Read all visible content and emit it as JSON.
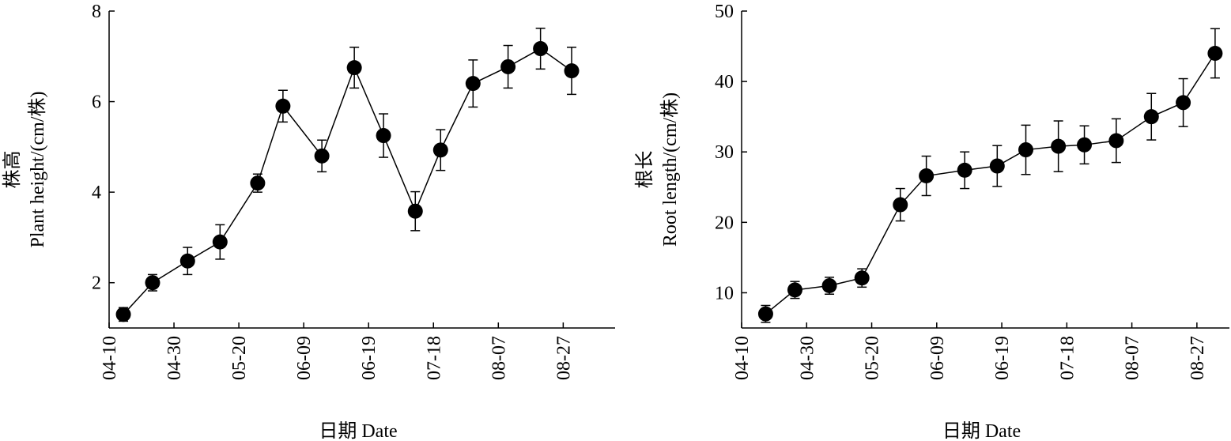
{
  "chart_data": [
    {
      "type": "line",
      "ylabel": [
        "株高",
        "Plant height/(cm/株)"
      ],
      "xlabel": "日期  Date",
      "xlim": [
        0,
        7.8
      ],
      "xticks": [
        {
          "value": 0,
          "label": "04-10"
        },
        {
          "value": 1,
          "label": "04-30"
        },
        {
          "value": 2,
          "label": "05-20"
        },
        {
          "value": 3,
          "label": "06-09"
        },
        {
          "value": 4,
          "label": "06-19"
        },
        {
          "value": 5,
          "label": "07-18"
        },
        {
          "value": 6,
          "label": "08-07"
        },
        {
          "value": 7,
          "label": "08-27"
        }
      ],
      "ylim": [
        1,
        8
      ],
      "yticks": [
        2,
        4,
        6,
        8
      ],
      "x": [
        0.22,
        0.67,
        1.21,
        1.71,
        2.29,
        2.68,
        3.28,
        3.78,
        4.23,
        4.72,
        5.11,
        5.61,
        6.15,
        6.65,
        7.13
      ],
      "series": [
        {
          "color": "#000000",
          "values": [
            1.3,
            2.0,
            2.48,
            2.9,
            4.2,
            5.9,
            4.8,
            6.75,
            5.25,
            3.58,
            4.93,
            6.4,
            6.77,
            7.17,
            6.68
          ],
          "errors": [
            0.15,
            0.18,
            0.3,
            0.38,
            0.2,
            0.35,
            0.35,
            0.45,
            0.48,
            0.43,
            0.45,
            0.52,
            0.47,
            0.45,
            0.52
          ]
        }
      ]
    },
    {
      "type": "line",
      "ylabel": [
        "根长",
        "Root length/(cm/株)"
      ],
      "xlabel": "日期  Date",
      "xlim": [
        0,
        7.5
      ],
      "xticks": [
        {
          "value": 0,
          "label": "04-10"
        },
        {
          "value": 1,
          "label": "04-30"
        },
        {
          "value": 2,
          "label": "05-20"
        },
        {
          "value": 3,
          "label": "06-09"
        },
        {
          "value": 4,
          "label": "06-19"
        },
        {
          "value": 5,
          "label": "07-18"
        },
        {
          "value": 6,
          "label": "08-07"
        },
        {
          "value": 7,
          "label": "08-27"
        }
      ],
      "ylim": [
        5,
        50
      ],
      "yticks": [
        10,
        20,
        30,
        40,
        50
      ],
      "x": [
        0.37,
        0.82,
        1.35,
        1.85,
        2.44,
        2.84,
        3.43,
        3.93,
        4.37,
        4.87,
        5.27,
        5.76,
        6.3,
        6.79,
        7.28
      ],
      "series": [
        {
          "color": "#000000",
          "values": [
            7,
            10.4,
            11,
            12.1,
            22.5,
            26.6,
            27.4,
            28,
            30.3,
            30.8,
            31,
            31.6,
            35,
            37,
            44
          ],
          "errors": [
            1.2,
            1.2,
            1.2,
            1.3,
            2.3,
            2.8,
            2.6,
            2.9,
            3.5,
            3.6,
            2.7,
            3.1,
            3.3,
            3.4,
            3.5
          ]
        }
      ]
    }
  ]
}
